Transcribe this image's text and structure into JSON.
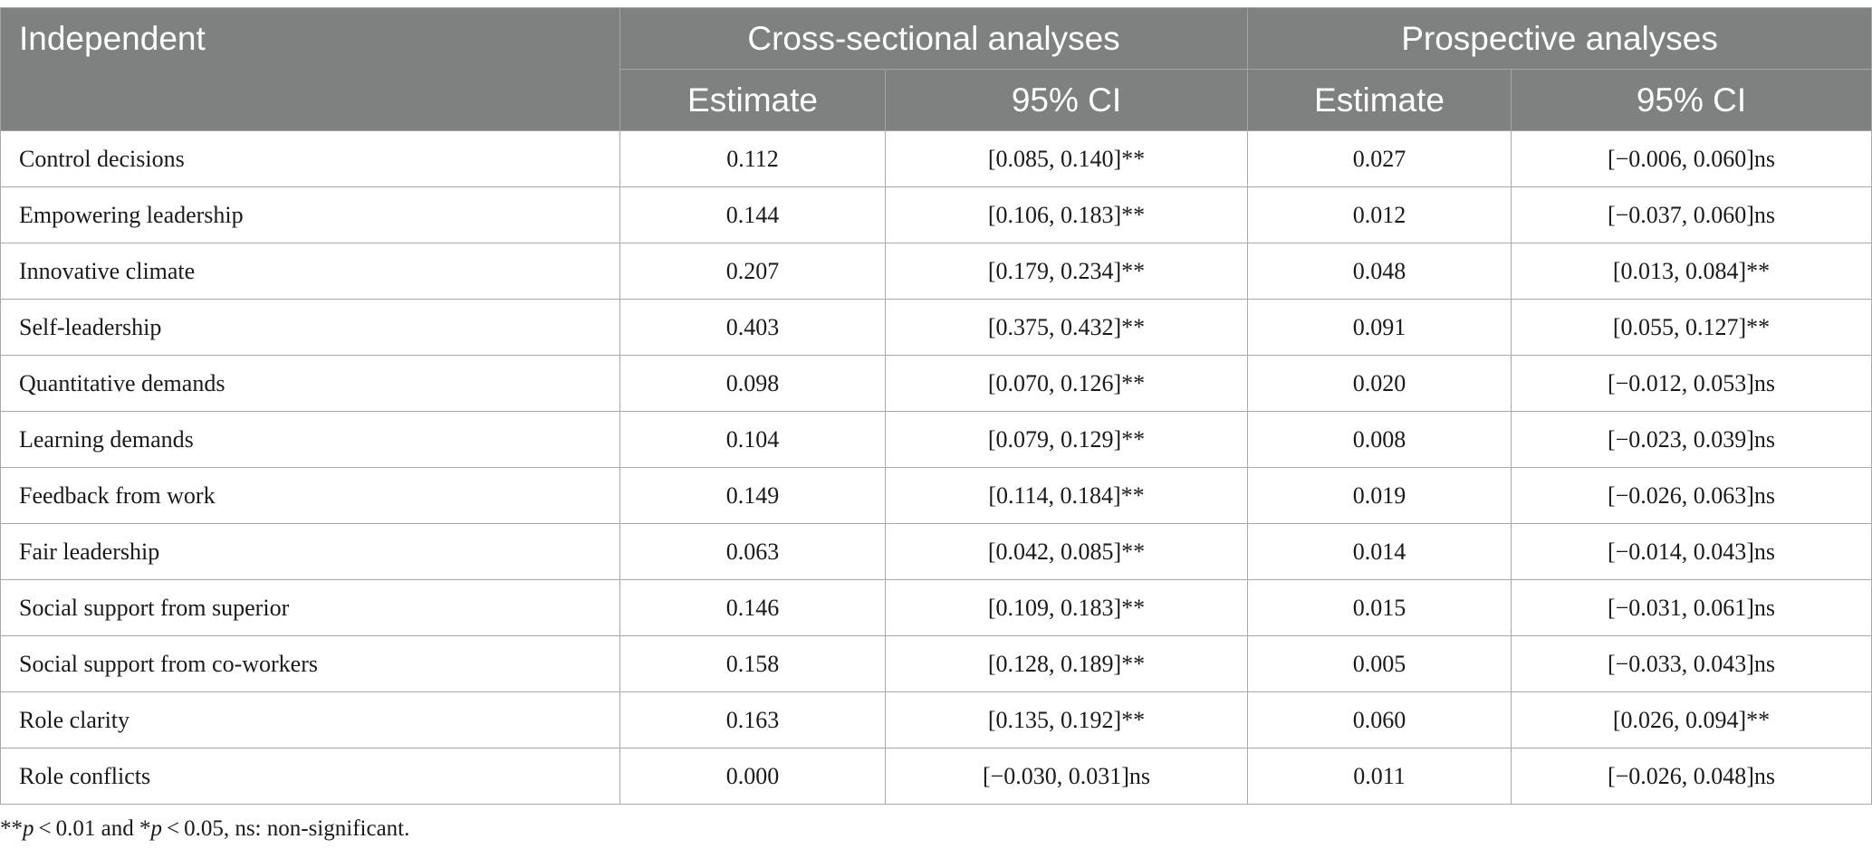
{
  "table": {
    "header": {
      "independent": "Independent",
      "cross_sectional": "Cross-sectional analyses",
      "prospective": "Prospective analyses",
      "estimate": "Estimate",
      "ci": "95% CI"
    },
    "rows": [
      {
        "label": "Control decisions",
        "cs_est": "0.112",
        "cs_ci": "[0.085, 0.140]**",
        "pr_est": "0.027",
        "pr_ci": "[−0.006, 0.060]ns"
      },
      {
        "label": "Empowering leadership",
        "cs_est": "0.144",
        "cs_ci": "[0.106, 0.183]**",
        "pr_est": "0.012",
        "pr_ci": "[−0.037, 0.060]ns"
      },
      {
        "label": "Innovative climate",
        "cs_est": "0.207",
        "cs_ci": "[0.179, 0.234]**",
        "pr_est": "0.048",
        "pr_ci": "[0.013, 0.084]**"
      },
      {
        "label": "Self-leadership",
        "cs_est": "0.403",
        "cs_ci": "[0.375, 0.432]**",
        "pr_est": "0.091",
        "pr_ci": "[0.055, 0.127]**"
      },
      {
        "label": "Quantitative demands",
        "cs_est": "0.098",
        "cs_ci": "[0.070, 0.126]**",
        "pr_est": "0.020",
        "pr_ci": "[−0.012, 0.053]ns"
      },
      {
        "label": "Learning demands",
        "cs_est": "0.104",
        "cs_ci": "[0.079, 0.129]**",
        "pr_est": "0.008",
        "pr_ci": "[−0.023, 0.039]ns"
      },
      {
        "label": "Feedback from work",
        "cs_est": "0.149",
        "cs_ci": "[0.114, 0.184]**",
        "pr_est": "0.019",
        "pr_ci": "[−0.026, 0.063]ns"
      },
      {
        "label": "Fair leadership",
        "cs_est": "0.063",
        "cs_ci": "[0.042, 0.085]**",
        "pr_est": "0.014",
        "pr_ci": "[−0.014, 0.043]ns"
      },
      {
        "label": "Social support from superior",
        "cs_est": "0.146",
        "cs_ci": "[0.109, 0.183]**",
        "pr_est": "0.015",
        "pr_ci": "[−0.031, 0.061]ns"
      },
      {
        "label": "Social support from co-workers",
        "cs_est": "0.158",
        "cs_ci": "[0.128, 0.189]**",
        "pr_est": "0.005",
        "pr_ci": "[−0.033, 0.043]ns"
      },
      {
        "label": "Role clarity",
        "cs_est": "0.163",
        "cs_ci": "[0.135, 0.192]**",
        "pr_est": "0.060",
        "pr_ci": "[0.026, 0.094]**"
      },
      {
        "label": "Role conflicts",
        "cs_est": "0.000",
        "cs_ci": "[−0.030, 0.031]ns",
        "pr_est": "0.011",
        "pr_ci": "[−0.026, 0.048]ns"
      }
    ]
  },
  "footnote": {
    "part1": "**",
    "p1": "p",
    "part2": " < 0.01 and *",
    "p2": "p",
    "part3": " < 0.05, ns: non-significant."
  }
}
